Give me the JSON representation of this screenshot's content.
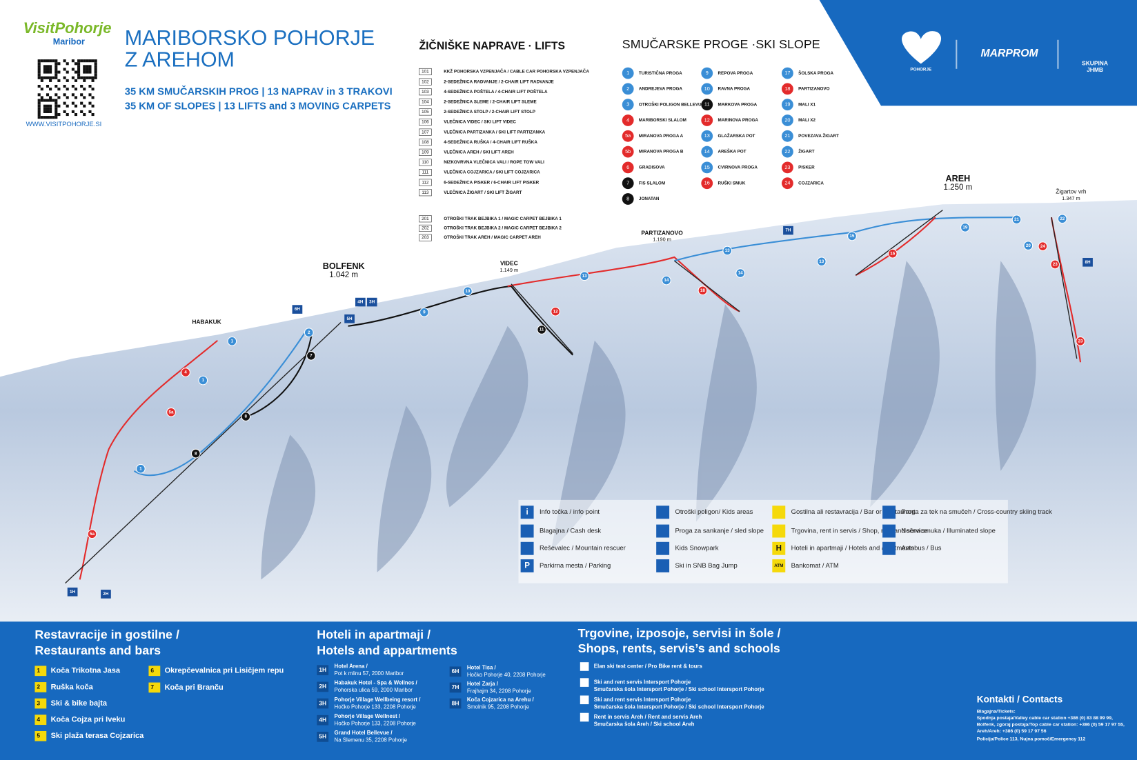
{
  "header": {
    "brand": "VisitPohorje",
    "brand_city": "Maribor",
    "website": "WWW.VISITPOHORJE.SI",
    "title": [
      "MARIBORSKO POHORJE",
      "Z AREHOM"
    ],
    "stats": [
      "35 KM SMUČARSKIH PROG | 13 NAPRAV in 3 TRAKOVI",
      "35 KM OF SLOPES | 13 LIFTS and 3 MOVING CARPETS"
    ]
  },
  "logos": {
    "pohorje": "POHORJE",
    "marprom": "MARPROM",
    "group": [
      "SKUPINA",
      "JHMB"
    ]
  },
  "lifts": {
    "heading": "ŽIČNIŠKE NAPRAVE · LIFTS",
    "items": [
      {
        "num": "101",
        "label": "KKŽ POHORSKA VZPENJAČA / CABLE CAR POHORSKA VZPENJAČA"
      },
      {
        "num": "102",
        "label": "2-SEDEŽNICA RADVANJE / 2-CHAIR LIFT RADVANJE"
      },
      {
        "num": "103",
        "label": "4-SEDEŽNICA POŠTELA / 4-CHAIR LIFT POŠTELA"
      },
      {
        "num": "104",
        "label": "2-SEDEŽNICA SLEME / 2-CHAIR LIFT SLEME"
      },
      {
        "num": "105",
        "label": "2-SEDEŽNICA STOLP / 2-CHAIR LIFT STOLP"
      },
      {
        "num": "106",
        "label": "VLEČNICA VIDEC / SKI LIFT VIDEC"
      },
      {
        "num": "107",
        "label": "VLEČNICA PARTIZANKA / SKI LIFT PARTIZANKA"
      },
      {
        "num": "108",
        "label": "4-SEDEŽNICA RUŠKA / 4-CHAIR LIFT RUŠKA"
      },
      {
        "num": "109",
        "label": "VLEČNICA AREH / SKI LIFT AREH"
      },
      {
        "num": "110",
        "label": "NIZKOVRVNA VLEČNICA VALI / ROPE TOW VALI"
      },
      {
        "num": "111",
        "label": "VLEČNICA COJZARICA / SKI LIFT COJZARICA"
      },
      {
        "num": "112",
        "label": "6-SEDEŽNICA PISKER / 6-CHAIR LIFT PISKER"
      },
      {
        "num": "113",
        "label": "VLEČNICA ŽIGART / SKI LIFT ŽIGART"
      }
    ],
    "carpets": [
      {
        "num": "201",
        "label": "OTROŠKI TRAK BEJBIKA 1 / MAGIC CARPET BEJBIKA 1"
      },
      {
        "num": "202",
        "label": "OTROŠKI TRAK BEJBIKA 2 / MAGIC CARPET BEJBIKA 2"
      },
      {
        "num": "203",
        "label": "OTROŠKI TRAK AREH / MAGIC CARPET AREH"
      }
    ]
  },
  "slopes": {
    "heading": "SMUČARSKE PROGE ·SKI SLOPE",
    "items": [
      {
        "num": "1",
        "name": "TURISTIČNA PROGA",
        "color": "#3a8ed6"
      },
      {
        "num": "2",
        "name": "ANDREJEVA PROGA",
        "color": "#3a8ed6"
      },
      {
        "num": "3",
        "name": "OTROŠKI POLIGON BELLEVUE",
        "color": "#3a8ed6"
      },
      {
        "num": "4",
        "name": "MARIBORSKI SLALOM",
        "color": "#e32b2b"
      },
      {
        "num": "5a",
        "name": "MIRANOVA PROGA A",
        "color": "#e32b2b"
      },
      {
        "num": "5b",
        "name": "MIRANOVA PROGA B",
        "color": "#e32b2b"
      },
      {
        "num": "6",
        "name": "GRADISOVA",
        "color": "#e32b2b"
      },
      {
        "num": "7",
        "name": "FIS SLALOM",
        "color": "#111111"
      },
      {
        "num": "8",
        "name": "JONATAN",
        "color": "#111111"
      },
      {
        "num": "9",
        "name": "REPOVA PROGA",
        "color": "#3a8ed6"
      },
      {
        "num": "10",
        "name": "RAVNA PROGA",
        "color": "#3a8ed6"
      },
      {
        "num": "11",
        "name": "MARKOVA PROGA",
        "color": "#111111"
      },
      {
        "num": "12",
        "name": "MARINOVA PROGA",
        "color": "#e32b2b"
      },
      {
        "num": "13",
        "name": "GLAŽARSKA POT",
        "color": "#3a8ed6"
      },
      {
        "num": "14",
        "name": "AREŠKA POT",
        "color": "#3a8ed6"
      },
      {
        "num": "15",
        "name": "CVIRNOVA PROGA",
        "color": "#3a8ed6"
      },
      {
        "num": "16",
        "name": "RUŠKI SMUK",
        "color": "#e32b2b"
      },
      {
        "num": "17",
        "name": "ŠOLSKA PROGA",
        "color": "#3a8ed6"
      },
      {
        "num": "18",
        "name": "PARTIZANOVO",
        "color": "#e32b2b"
      },
      {
        "num": "19",
        "name": "MALI X1",
        "color": "#3a8ed6"
      },
      {
        "num": "20",
        "name": "MALI X2",
        "color": "#3a8ed6"
      },
      {
        "num": "21",
        "name": "POVEZAVA ŽIGART",
        "color": "#3a8ed6"
      },
      {
        "num": "22",
        "name": "ŽIGART",
        "color": "#3a8ed6"
      },
      {
        "num": "23",
        "name": "PISKER",
        "color": "#e32b2b"
      },
      {
        "num": "24",
        "name": "COJZARICA",
        "color": "#e32b2b"
      }
    ]
  },
  "places": [
    {
      "name": "BOLFENK",
      "altitude": "1.042 m"
    },
    {
      "name": "HABAKUK"
    },
    {
      "name": "VIDEC",
      "altitude": "1.149 m"
    },
    {
      "name": "PARTIZANOVO",
      "altitude": "1.190 m"
    },
    {
      "name": "AREH",
      "altitude": "1.250 m"
    },
    {
      "name": "Žigartov vrh",
      "altitude": "1.347 m"
    }
  ],
  "map_markers": [
    {
      "label": "1",
      "color": "#3a8ed6"
    },
    {
      "label": "1",
      "color": "#3a8ed6"
    },
    {
      "label": "1",
      "color": "#3a8ed6"
    },
    {
      "label": "2",
      "color": "#3a8ed6"
    },
    {
      "label": "4",
      "color": "#e32b2b"
    },
    {
      "label": "5a",
      "color": "#e32b2b"
    },
    {
      "label": "5a",
      "color": "#e32b2b"
    },
    {
      "label": "7",
      "color": "#111111"
    },
    {
      "label": "8",
      "color": "#111111"
    },
    {
      "label": "8",
      "color": "#111111"
    },
    {
      "label": "9",
      "color": "#3a8ed6"
    },
    {
      "label": "10",
      "color": "#3a8ed6"
    },
    {
      "label": "11",
      "color": "#111111"
    },
    {
      "label": "12",
      "color": "#e32b2b"
    },
    {
      "label": "13",
      "color": "#3a8ed6"
    },
    {
      "label": "13",
      "color": "#3a8ed6"
    },
    {
      "label": "13",
      "color": "#3a8ed6"
    },
    {
      "label": "14",
      "color": "#3a8ed6"
    },
    {
      "label": "14",
      "color": "#3a8ed6"
    },
    {
      "label": "15",
      "color": "#3a8ed6"
    },
    {
      "label": "16",
      "color": "#e32b2b"
    },
    {
      "label": "18",
      "color": "#e32b2b"
    },
    {
      "label": "19",
      "color": "#3a8ed6"
    },
    {
      "label": "20",
      "color": "#3a8ed6"
    },
    {
      "label": "21",
      "color": "#3a8ed6"
    },
    {
      "label": "22",
      "color": "#3a8ed6"
    },
    {
      "label": "23",
      "color": "#e32b2b"
    },
    {
      "label": "23",
      "color": "#e32b2b"
    },
    {
      "label": "24",
      "color": "#e32b2b"
    },
    {
      "label": "6H",
      "color": "#1a4f9c"
    },
    {
      "label": "4H",
      "color": "#1a4f9c"
    },
    {
      "label": "3H",
      "color": "#1a4f9c"
    },
    {
      "label": "5H",
      "color": "#1a4f9c"
    },
    {
      "label": "1H",
      "color": "#1a4f9c"
    },
    {
      "label": "2H",
      "color": "#1a4f9c"
    },
    {
      "label": "7H",
      "color": "#1a4f9c"
    },
    {
      "label": "8H",
      "color": "#1a4f9c"
    }
  ],
  "legend": [
    {
      "icon": "i",
      "text": "Info točka / info point"
    },
    {
      "text": "Blagajna  / Cash desk"
    },
    {
      "text": "Reševalec / Mountain rescuer"
    },
    {
      "icon": "P",
      "text": "Parkirna mesta / Parking"
    },
    {
      "text": "Otroški poligon/ Kids areas"
    },
    {
      "text": "Proga za sankanje / sled slope"
    },
    {
      "text": "Kids Snowpark"
    },
    {
      "text": "Ski in SNB Bag Jump"
    },
    {
      "text": "Gostilna ali restavracija / Bar or Restaurant"
    },
    {
      "text": "Trgovina, rent in servis / Shop, rent and service"
    },
    {
      "icon": "H",
      "text": "Hoteli in apartmaji / Hotels and apartments"
    },
    {
      "icon": "ATM",
      "text": "Bankomat / ATM"
    },
    {
      "text": "Proga za tek na smučeh / Cross-country skiing track"
    },
    {
      "text": "Nočna smuka / Illuminated slope"
    },
    {
      "text": "Avtobus / Bus"
    }
  ],
  "restaurants": {
    "heading": [
      "Restavracije in gostilne /",
      "Restaurants and bars"
    ],
    "items": [
      {
        "code": "1",
        "name": "Koča Trikotna Jasa"
      },
      {
        "code": "2",
        "name": "Ruška koča"
      },
      {
        "code": "3",
        "name": "Ski & bike bajta"
      },
      {
        "code": "4",
        "name": "Koča Cojza pri Iveku"
      },
      {
        "code": "5",
        "name": "Ski plaža terasa Cojzarica"
      },
      {
        "code": "6",
        "name": "Okrepčevalnica pri Lisičjem repu"
      },
      {
        "code": "7",
        "name": "Koča pri Branču"
      }
    ]
  },
  "hotels": {
    "heading": [
      "Hoteli in apartmaji /",
      "Hotels and appartments"
    ],
    "items": [
      {
        "code": "1H",
        "name": "Hotel Arena /",
        "address": "Pot k mlinu 57, 2000 Maribor"
      },
      {
        "code": "2H",
        "name": "Habakuk Hotel - Spa & Wellnes /",
        "address": "Pohorska ulica 59, 2000 Maribor"
      },
      {
        "code": "3H",
        "name": "Pohorje Village Wellbeing resort /",
        "address": "Hočko Pohorje 133, 2208 Pohorje"
      },
      {
        "code": "4H",
        "name": "Pohorje Village Wellnest /",
        "address": "Hočko Pohorje 133, 2208 Pohorje"
      },
      {
        "code": "5H",
        "name": "Grand Hotel Bellevue /",
        "address": "Na Slemenu 35, 2208 Pohorje"
      },
      {
        "code": "6H",
        "name": "Hotel Tisa /",
        "address": "Hočko Pohorje 40, 2208 Pohorje"
      },
      {
        "code": "7H",
        "name": "Hotel Zarja /",
        "address": "Frajhajm 34, 2208 Pohorje"
      },
      {
        "code": "8H",
        "name": "Koča Cojzarica na Arehu /",
        "address": "Smolnik 95, 2208 Pohorje"
      }
    ]
  },
  "shops": {
    "heading": [
      "Trgovine, izposoje, servisi in šole /",
      "Shops, rents, servis’s and schools"
    ],
    "items": [
      {
        "lines": [
          "Elan ski test center / Pro Bike rent & tours"
        ]
      },
      {
        "lines": [
          "Ski and rent servis Intersport Pohorje",
          "Smučarska šola Intersport Pohorje / Ski school Intersport Pohorje"
        ]
      },
      {
        "lines": [
          "Ski and rent servis Intersport Pohorje",
          "Smučarska šola Intersport Pohorje / Ski school Intersport Pohorje"
        ]
      },
      {
        "lines": [
          "Rent in servis Areh / Rent and servis Areh",
          "Smučarska šola Areh / Ski school Areh"
        ]
      }
    ]
  },
  "contacts": {
    "heading": "Kontakti / Contacts",
    "lines": [
      "Blagajna/Tickets:",
      "Spodnja postaja/Valley cable car station +386 (0) 83 88 99 99,",
      "Bolfenk, zgoraj postaja/Top cable car station: +386 (0) 59 17 97 55,",
      "Areh/Areh: +386 (0) 59 17 97 56"
    ],
    "emergency": "Policija/Police 113, Nujna pomoč/Emergency 112"
  }
}
